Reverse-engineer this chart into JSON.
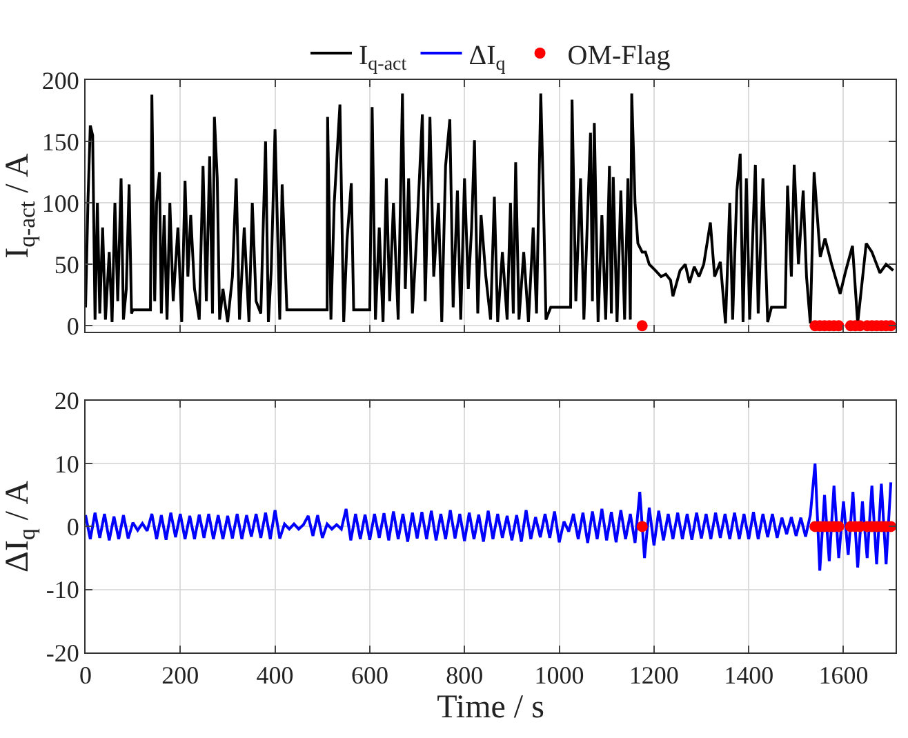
{
  "chart_data": [
    {
      "type": "line",
      "ylabel": "I$_{q-act}$ / A",
      "xlim": [
        0,
        1710
      ],
      "ylim": [
        -5,
        200
      ],
      "xticks": [
        0,
        200,
        400,
        600,
        800,
        1000,
        1200,
        1400,
        1600
      ],
      "yticks": [
        0,
        50,
        100,
        150,
        200
      ],
      "tick_labels": "y",
      "grid": true,
      "legend": "top",
      "series": [
        {
          "name": "I$_{q-act}$",
          "color": "#000000",
          "marker": "none",
          "line_style": "solid",
          "x": [
            0,
            5,
            10,
            15,
            20,
            25,
            30,
            36,
            42,
            50,
            56,
            62,
            68,
            75,
            80,
            86,
            92,
            97,
            100,
            137,
            140,
            146,
            150,
            156,
            160,
            166,
            172,
            178,
            185,
            195,
            203,
            210,
            216,
            222,
            230,
            240,
            248,
            255,
            262,
            268,
            272,
            278,
            283,
            290,
            300,
            310,
            318,
            325,
            335,
            345,
            352,
            360,
            370,
            380,
            386,
            392,
            400,
            410,
            415,
            425,
            442,
            510,
            511,
            518,
            525,
            537,
            545,
            552,
            561,
            566,
            600,
            605,
            612,
            620,
            628,
            635,
            642,
            650,
            660,
            669,
            675,
            682,
            690,
            700,
            711,
            717,
            727,
            735,
            745,
            752,
            760,
            769,
            776,
            785,
            792,
            800,
            808,
            815,
            821,
            828,
            835,
            845,
            855,
            863,
            870,
            880,
            890,
            897,
            903,
            908,
            915,
            925,
            935,
            945,
            952,
            961,
            966,
            972,
            982,
            1024,
            1027,
            1035,
            1045,
            1052,
            1066,
            1070,
            1074,
            1082,
            1090,
            1098,
            1106,
            1110,
            1114,
            1122,
            1130,
            1138,
            1145,
            1150,
            1153,
            1160,
            1166,
            1175,
            1182,
            1190,
            1203,
            1215,
            1225,
            1235,
            1240,
            1255,
            1266,
            1275,
            1285,
            1295,
            1305,
            1319,
            1328,
            1340,
            1351,
            1360,
            1366,
            1375,
            1382,
            1388,
            1395,
            1402,
            1414,
            1420,
            1430,
            1440,
            1448,
            1477,
            1482,
            1490,
            1496,
            1505,
            1515,
            1522,
            1530,
            1538,
            1551,
            1561,
            1575,
            1593,
            1605,
            1619,
            1630,
            1648,
            1660,
            1677,
            1690,
            1705
          ],
          "values": [
            15,
            100,
            163,
            155,
            5,
            100,
            10,
            80,
            5,
            60,
            3,
            100,
            20,
            120,
            5,
            30,
            115,
            10,
            13,
            13,
            188,
            20,
            100,
            125,
            10,
            90,
            5,
            100,
            20,
            80,
            3,
            118,
            40,
            90,
            30,
            5,
            130,
            20,
            138,
            10,
            170,
            120,
            5,
            30,
            3,
            40,
            120,
            5,
            80,
            3,
            100,
            20,
            10,
            150,
            3,
            45,
            160,
            5,
            115,
            13,
            13,
            13,
            170,
            5,
            100,
            180,
            3,
            70,
            116,
            13,
            13,
            178,
            5,
            80,
            3,
            120,
            20,
            100,
            5,
            189,
            30,
            120,
            10,
            80,
            172,
            20,
            170,
            40,
            100,
            3,
            130,
            168,
            15,
            110,
            5,
            120,
            30,
            80,
            151,
            10,
            90,
            40,
            5,
            105,
            3,
            60,
            5,
            100,
            10,
            133,
            5,
            60,
            3,
            80,
            10,
            189,
            114,
            5,
            15,
            15,
            184,
            20,
            120,
            5,
            157,
            20,
            165,
            3,
            90,
            5,
            130,
            10,
            121,
            3,
            110,
            5,
            120,
            5,
            189,
            100,
            67,
            60,
            60,
            50,
            45,
            40,
            42,
            37,
            24,
            45,
            50,
            35,
            48,
            40,
            50,
            84,
            40,
            52,
            2,
            100,
            5,
            110,
            140,
            3,
            120,
            5,
            131,
            10,
            120,
            3,
            15,
            15,
            114,
            40,
            131,
            50,
            110,
            40,
            2,
            125,
            56,
            71,
            50,
            26,
            45,
            65,
            2,
            67,
            60,
            43,
            50,
            45
          ]
        },
        {
          "color": "#ff0000",
          "type": "scatter",
          "marker": "circle",
          "x": [
            1175,
            1540,
            1550,
            1560,
            1570,
            1580,
            1590,
            1615,
            1625,
            1635,
            1650,
            1660,
            1670,
            1680,
            1690,
            1700
          ],
          "values": [
            0,
            0,
            0,
            0,
            0,
            0,
            0,
            0,
            0,
            0,
            0,
            0,
            0,
            0,
            0,
            0
          ]
        }
      ]
    },
    {
      "type": "line",
      "xlabel": "Time / s",
      "ylabel": "ΔI$_{q}$ / A",
      "xlim": [
        0,
        1710
      ],
      "ylim": [
        -20,
        20
      ],
      "xticks": [
        0,
        200,
        400,
        600,
        800,
        1000,
        1200,
        1400,
        1600
      ],
      "yticks": [
        -20,
        -10,
        0,
        10,
        20
      ],
      "grid": true,
      "legend": "top",
      "series": [
        {
          "name": "ΔI$_{q}$",
          "color": "#0000ff",
          "marker": "none",
          "line_style": "solid",
          "x": [
            0,
            10,
            20,
            30,
            40,
            50,
            60,
            70,
            80,
            90,
            100,
            110,
            120,
            130,
            140,
            150,
            160,
            170,
            180,
            190,
            200,
            210,
            220,
            230,
            240,
            250,
            260,
            270,
            280,
            290,
            300,
            310,
            320,
            330,
            340,
            350,
            360,
            370,
            380,
            390,
            400,
            410,
            420,
            430,
            440,
            450,
            460,
            470,
            480,
            490,
            500,
            510,
            520,
            530,
            540,
            550,
            560,
            570,
            580,
            590,
            600,
            610,
            620,
            630,
            640,
            650,
            660,
            670,
            680,
            690,
            700,
            710,
            720,
            730,
            740,
            750,
            760,
            770,
            780,
            790,
            800,
            810,
            820,
            830,
            840,
            850,
            860,
            870,
            880,
            890,
            900,
            910,
            920,
            930,
            940,
            950,
            960,
            970,
            980,
            990,
            1000,
            1010,
            1020,
            1030,
            1040,
            1050,
            1060,
            1070,
            1080,
            1090,
            1100,
            1110,
            1120,
            1130,
            1140,
            1150,
            1160,
            1170,
            1180,
            1190,
            1200,
            1210,
            1220,
            1230,
            1240,
            1250,
            1260,
            1270,
            1280,
            1290,
            1300,
            1310,
            1320,
            1330,
            1340,
            1350,
            1360,
            1370,
            1380,
            1390,
            1400,
            1410,
            1420,
            1430,
            1440,
            1450,
            1460,
            1470,
            1480,
            1490,
            1500,
            1510,
            1520,
            1530,
            1540,
            1550,
            1560,
            1570,
            1580,
            1590,
            1600,
            1610,
            1620,
            1630,
            1640,
            1650,
            1660,
            1670,
            1680,
            1690,
            1700
          ],
          "values": [
            1.8,
            -2,
            2.2,
            -1.8,
            2,
            -2.2,
            1.6,
            -2,
            1.8,
            -1.9,
            0.6,
            -0.6,
            0.5,
            -0.7,
            2,
            -2,
            1.8,
            -2.1,
            2.2,
            -1.7,
            2,
            -2,
            1.7,
            -2,
            1.9,
            -1.8,
            2,
            -2,
            1.8,
            -2,
            1.7,
            -1.9,
            2,
            -2,
            1.8,
            -1.6,
            2,
            -1.8,
            2.2,
            -2,
            2.6,
            -1.9,
            0.4,
            -0.4,
            0.4,
            -0.4,
            0.3,
            1.7,
            -1.5,
            1.8,
            -1.8,
            0.4,
            -0.4,
            0.3,
            -0.4,
            2.8,
            -2.2,
            2,
            -2,
            1.9,
            -2.1,
            2,
            -1.8,
            2.1,
            -2.2,
            2.4,
            -2,
            2,
            -2.4,
            2.2,
            -1.9,
            2.3,
            -2,
            2.5,
            -2.2,
            2,
            -2,
            2.6,
            -1.9,
            2,
            -2.3,
            2.2,
            -2,
            1.9,
            -2.4,
            2.5,
            -2,
            2,
            -1.8,
            1.7,
            -2.2,
            1.8,
            -2.4,
            2.6,
            -2,
            1.5,
            -1.7,
            2,
            -1.8,
            2.4,
            -2.5,
            0.8,
            -0.8,
            2,
            -2,
            2.2,
            -2.6,
            2.4,
            -2,
            2.8,
            -2.2,
            2.3,
            -2.5,
            2.6,
            -2,
            2,
            -2.6,
            5.5,
            -5,
            3,
            -3,
            2.5,
            -2.2,
            2,
            -2,
            2.2,
            -2,
            2,
            -2.1,
            2.2,
            -1.9,
            2,
            -2,
            2.2,
            -1.8,
            2,
            -2,
            2.2,
            -2,
            2,
            -2,
            2.3,
            -2,
            2,
            -1.7,
            2,
            -1.8,
            1.4,
            -1.2,
            1.5,
            -1.5,
            1.4,
            -1.6,
            1.8,
            10,
            -7,
            5,
            -5.5,
            6.5,
            -5,
            4,
            -4.5,
            5.5,
            -6.5,
            4,
            -5,
            6.5,
            -6,
            6.8,
            -6,
            7
          ]
        },
        {
          "name": "OM-Flag",
          "color": "#ff0000",
          "type": "scatter",
          "marker": "circle",
          "x": [
            1175,
            1540,
            1550,
            1560,
            1570,
            1580,
            1590,
            1615,
            1625,
            1635,
            1650,
            1660,
            1670,
            1680,
            1690,
            1700
          ],
          "values": [
            0,
            0,
            0,
            0,
            0,
            0,
            0,
            0,
            0,
            0,
            0,
            0,
            0,
            0,
            0,
            0
          ]
        }
      ]
    }
  ]
}
